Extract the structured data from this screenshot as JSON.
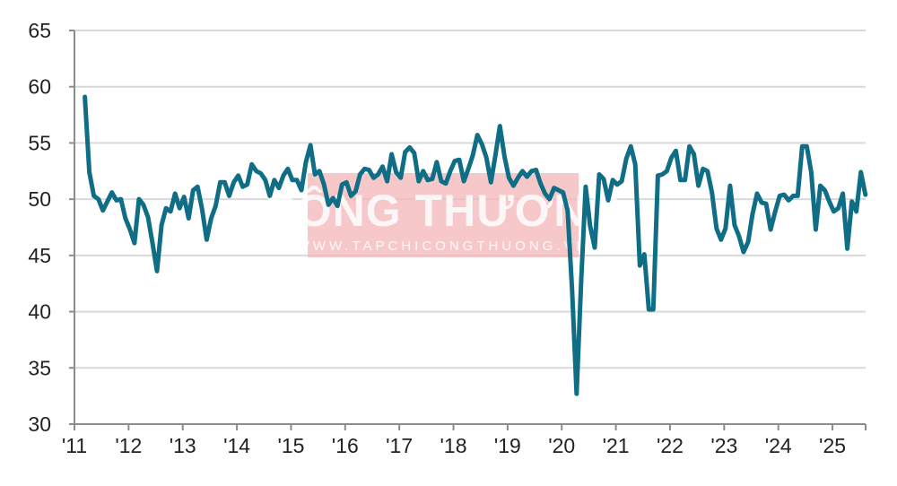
{
  "watermark": {
    "title": "CÔNG THƯƠNG",
    "url": "WWW.TAPCHICONGTHUONG.VN"
  },
  "chart_data": {
    "type": "line",
    "title": "",
    "xlabel": "",
    "ylabel": "",
    "ylim": [
      30,
      65
    ],
    "yticks": [
      "30",
      "35",
      "40",
      "45",
      "50",
      "55",
      "60",
      "65"
    ],
    "xticks": [
      "'11",
      "'12",
      "'13",
      "'14",
      "'15",
      "'16",
      "'17",
      "'18",
      "'19",
      "'20",
      "'21",
      "'22",
      "'23",
      "'24",
      "'25"
    ],
    "grid": "horizontal",
    "line_color": "#0f6e86",
    "x_start": "2011-03",
    "x_end": "2025-08",
    "frequency": "monthly",
    "series": [
      {
        "values": [
          59.1,
          52.4,
          50.3,
          50.0,
          49.0,
          49.8,
          50.6,
          49.9,
          50.0,
          48.3,
          47.3,
          46.1,
          50.0,
          49.5,
          48.4,
          46.1,
          43.6,
          47.7,
          49.2,
          48.9,
          50.5,
          49.2,
          50.2,
          48.3,
          50.8,
          51.1,
          49.1,
          46.4,
          48.3,
          49.4,
          51.5,
          51.5,
          50.3,
          51.5,
          52.1,
          51.1,
          51.3,
          53.1,
          52.5,
          52.3,
          51.7,
          50.3,
          51.7,
          51.0,
          52.1,
          52.7,
          51.7,
          51.7,
          50.8,
          53.3,
          54.8,
          52.2,
          52.5,
          51.3,
          49.5,
          50.1,
          49.4,
          51.3,
          51.5,
          50.3,
          50.7,
          52.2,
          52.7,
          52.6,
          51.9,
          52.2,
          52.9,
          51.6,
          54.0,
          52.4,
          51.9,
          54.2,
          54.6,
          54.1,
          51.6,
          52.5,
          51.7,
          51.8,
          53.3,
          51.6,
          51.4,
          52.5,
          53.4,
          53.5,
          51.6,
          52.7,
          53.9,
          55.7,
          54.9,
          53.7,
          51.5,
          53.9,
          56.5,
          53.8,
          51.9,
          51.2,
          51.9,
          52.5,
          52.0,
          52.5,
          52.6,
          51.4,
          50.5,
          50.0,
          51.0,
          50.8,
          50.6,
          49.0,
          41.9,
          32.7,
          42.7,
          51.1,
          47.6,
          45.7,
          52.2,
          51.8,
          49.9,
          51.7,
          51.3,
          51.6,
          53.6,
          54.7,
          53.1,
          44.1,
          45.1,
          40.2,
          40.2,
          52.1,
          52.2,
          52.5,
          53.7,
          54.3,
          51.7,
          51.7,
          54.7,
          54.0,
          51.2,
          52.7,
          52.5,
          50.6,
          47.4,
          46.4,
          47.4,
          51.2,
          47.7,
          46.7,
          45.3,
          46.2,
          48.7,
          50.5,
          49.7,
          49.6,
          47.3,
          48.9,
          50.3,
          50.4,
          49.9,
          50.3,
          50.3,
          54.7,
          54.7,
          52.4,
          47.3,
          51.2,
          50.8,
          49.8,
          48.9,
          49.2,
          50.5,
          45.6,
          49.8,
          48.9,
          52.4,
          50.4
        ]
      }
    ]
  }
}
